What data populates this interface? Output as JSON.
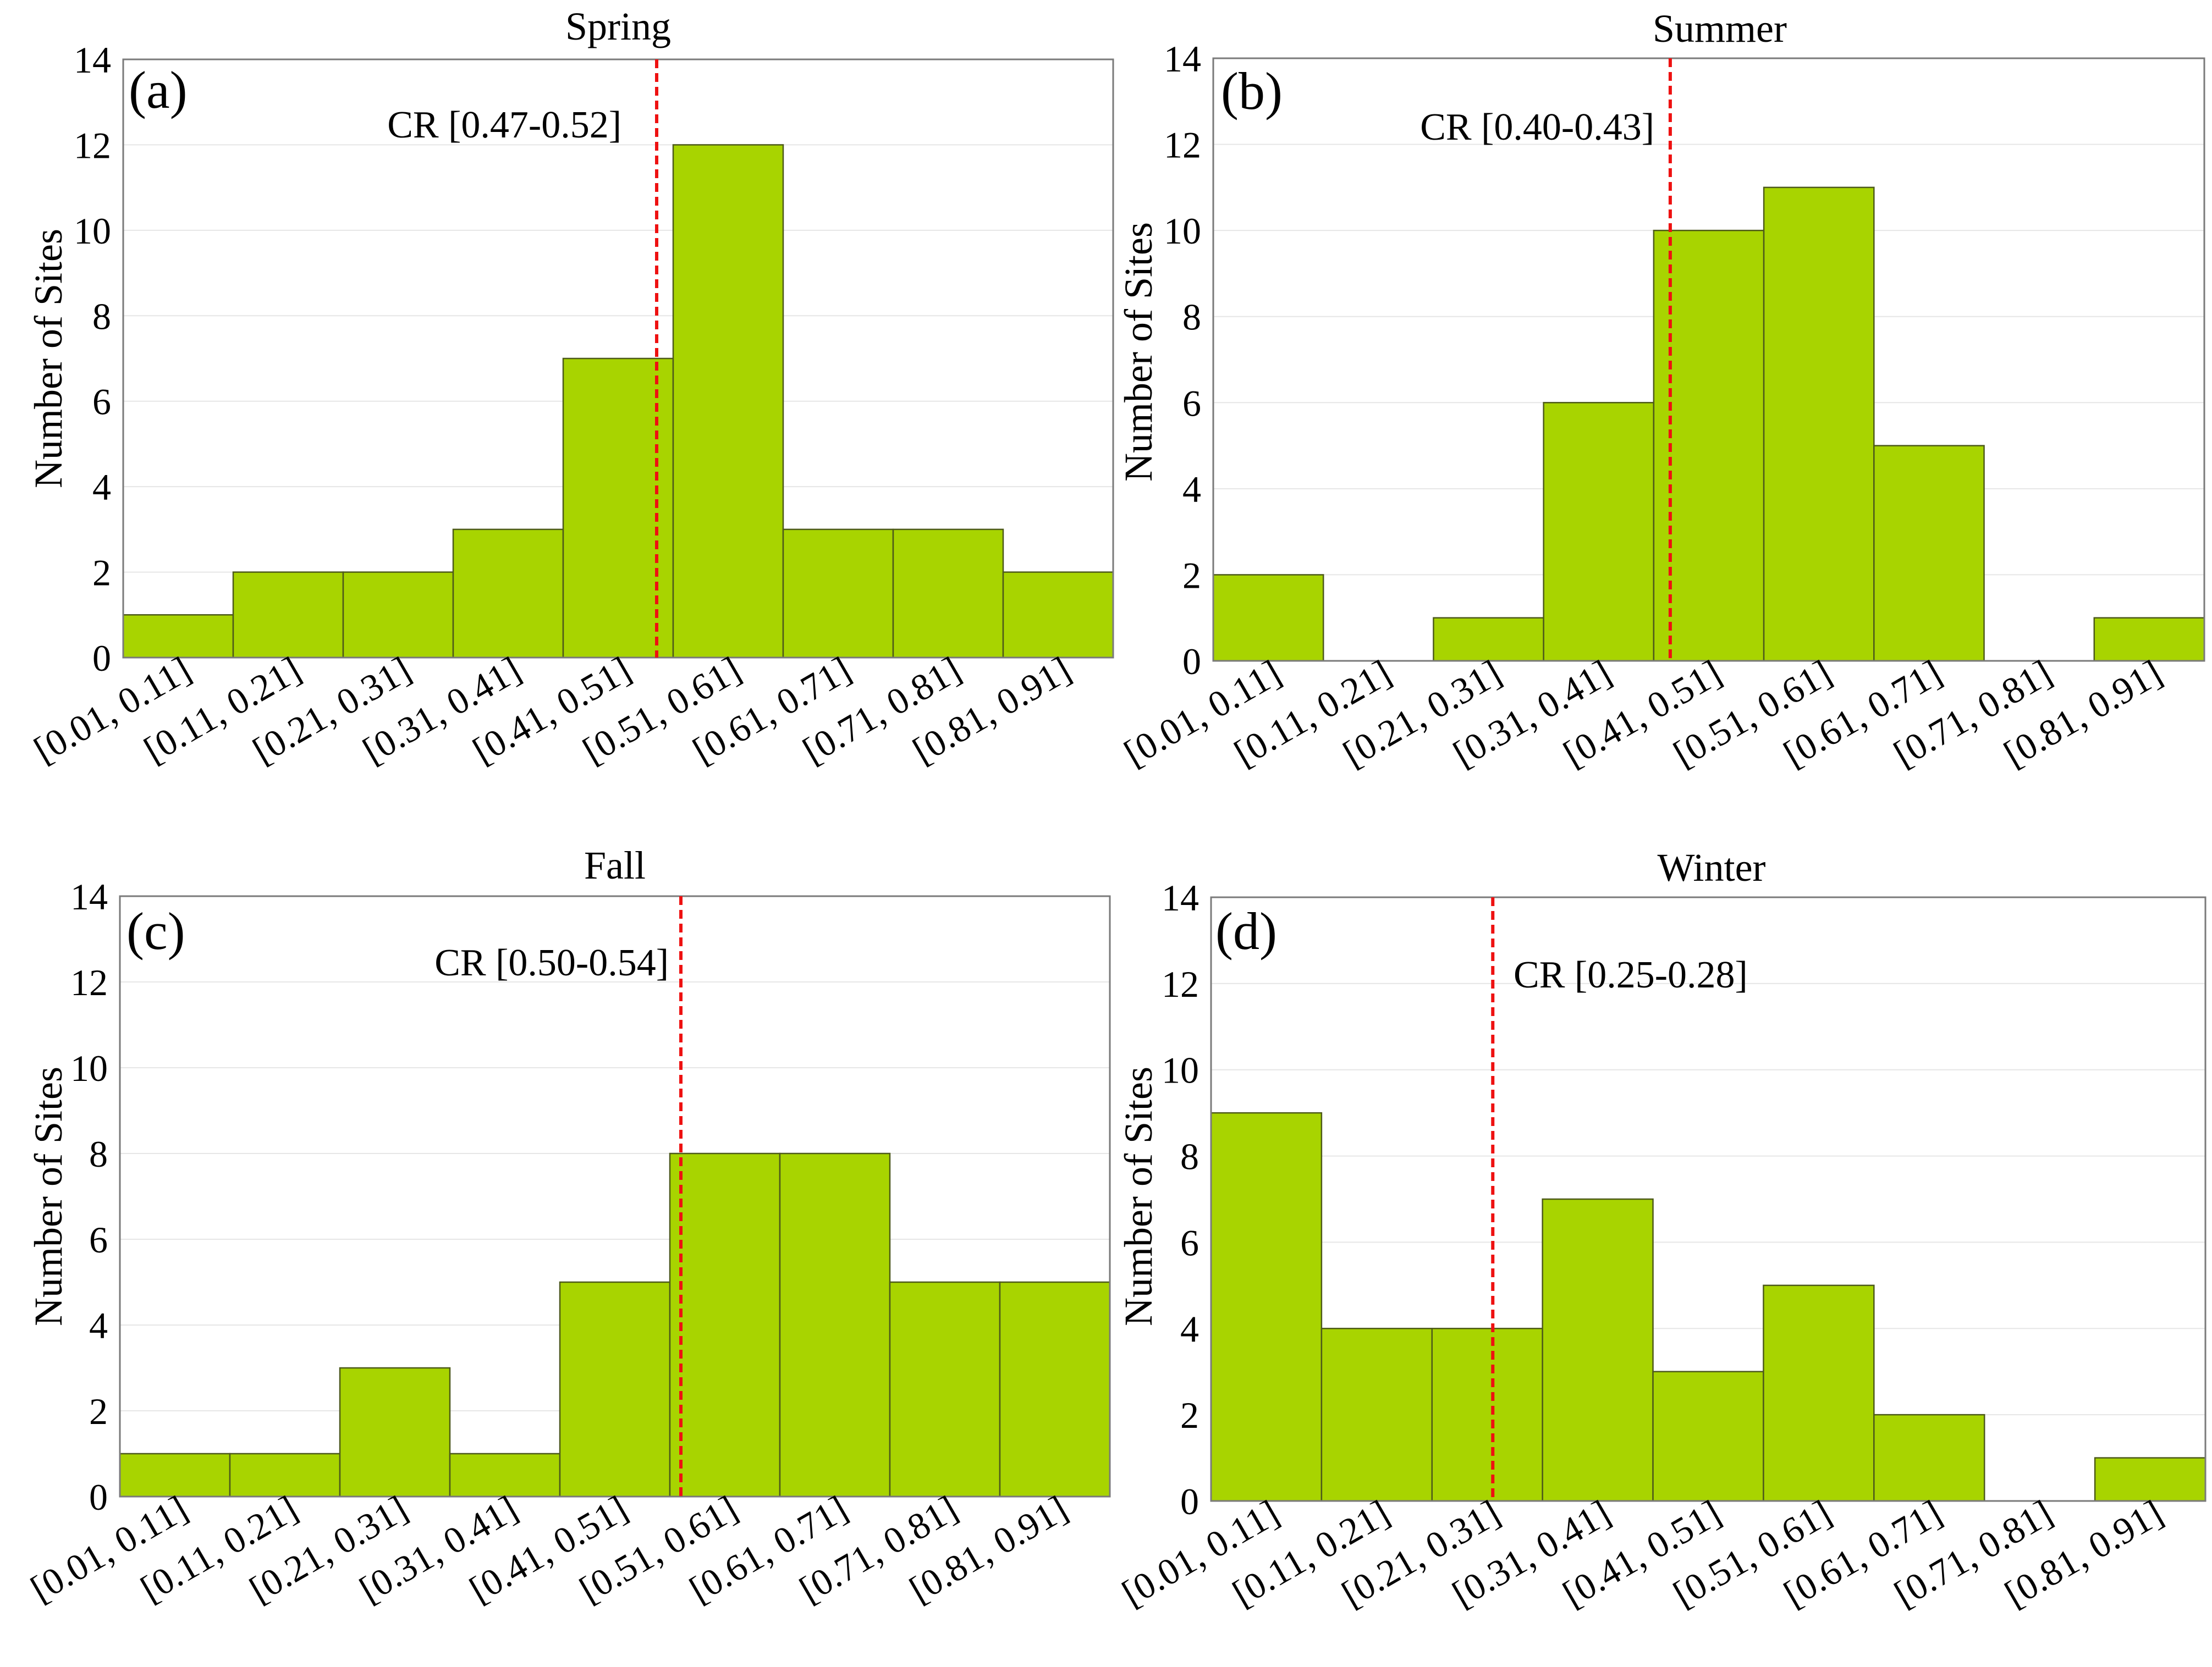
{
  "colors": {
    "bar_fill": "#a8d400",
    "bar_stroke": "#4d5a1a",
    "cr_line": "#ee1111",
    "grid": "#e6e6e6",
    "frame": "#7a7a7a"
  },
  "chart_data": [
    {
      "type": "bar",
      "panel_label": "(a)",
      "title": "Spring",
      "xlabel": "",
      "ylabel": "Number of Sites",
      "ylim": [
        0,
        14
      ],
      "yticks": [
        "0",
        "2",
        "4",
        "6",
        "8",
        "10",
        "12",
        "14"
      ],
      "categories": [
        "[0.01, 0.11]",
        "[0.11, 0.21]",
        "[0.21, 0.31]",
        "[0.31, 0.41]",
        "[0.41, 0.51]",
        "[0.51, 0.61]",
        "[0.61, 0.71]",
        "[0.71, 0.81]",
        "[0.81, 0.91]"
      ],
      "values": [
        1,
        2,
        2,
        3,
        7,
        12,
        3,
        3,
        2
      ],
      "cr_label": "CR [0.47-0.52]",
      "cr_value": 0.495,
      "x_domain": [
        0.01,
        0.91
      ],
      "grid": "horizontal"
    },
    {
      "type": "bar",
      "panel_label": "(b)",
      "title": "Summer",
      "xlabel": "",
      "ylabel": "Number of Sites",
      "ylim": [
        0,
        14
      ],
      "yticks": [
        "0",
        "2",
        "4",
        "6",
        "8",
        "10",
        "12",
        "14"
      ],
      "categories": [
        "[0.01, 0.11]",
        "[0.11, 0.21]",
        "[0.21, 0.31]",
        "[0.31, 0.41]",
        "[0.41, 0.51]",
        "[0.51, 0.61]",
        "[0.61, 0.71]",
        "[0.71, 0.81]",
        "[0.81, 0.91]"
      ],
      "values": [
        2,
        0,
        1,
        6,
        10,
        11,
        5,
        0,
        1
      ],
      "cr_label": "CR [0.40-0.43]",
      "cr_value": 0.425,
      "x_domain": [
        0.01,
        0.91
      ],
      "grid": "horizontal"
    },
    {
      "type": "bar",
      "panel_label": "(c)",
      "title": "Fall",
      "xlabel": "",
      "ylabel": "Number of Sites",
      "ylim": [
        0,
        14
      ],
      "yticks": [
        "0",
        "2",
        "4",
        "6",
        "8",
        "10",
        "12",
        "14"
      ],
      "categories": [
        "[0.01, 0.11]",
        "[0.11, 0.21]",
        "[0.21, 0.31]",
        "[0.31, 0.41]",
        "[0.41, 0.51]",
        "[0.51, 0.61]",
        "[0.61, 0.71]",
        "[0.71, 0.81]",
        "[0.81, 0.91]"
      ],
      "values": [
        1,
        1,
        3,
        1,
        5,
        8,
        8,
        5,
        5
      ],
      "cr_label": "CR [0.50-0.54]",
      "cr_value": 0.52,
      "x_domain": [
        0.01,
        0.91
      ],
      "grid": "horizontal"
    },
    {
      "type": "bar",
      "panel_label": "(d)",
      "title": "Winter",
      "xlabel": "",
      "ylabel": "Number of Sites",
      "ylim": [
        0,
        14
      ],
      "yticks": [
        "0",
        "2",
        "4",
        "6",
        "8",
        "10",
        "12",
        "14"
      ],
      "categories": [
        "[0.01, 0.11]",
        "[0.11, 0.21]",
        "[0.21, 0.31]",
        "[0.31, 0.41]",
        "[0.41, 0.51]",
        "[0.51, 0.61]",
        "[0.61, 0.71]",
        "[0.71, 0.81]",
        "[0.81, 0.91]"
      ],
      "values": [
        9,
        4,
        4,
        7,
        3,
        5,
        2,
        0,
        1
      ],
      "cr_label": "CR [0.25-0.28]",
      "cr_value": 0.265,
      "x_domain": [
        0.01,
        0.91
      ],
      "grid": "horizontal"
    }
  ]
}
